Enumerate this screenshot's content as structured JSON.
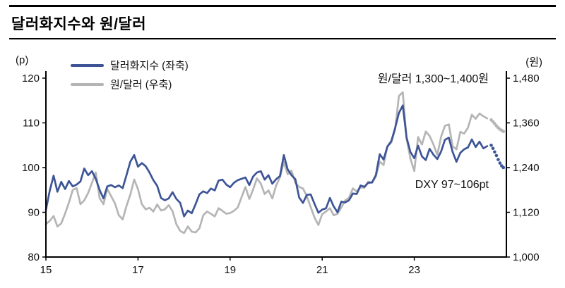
{
  "header": {
    "title": "달러화지수와 원/달러"
  },
  "chart_data": {
    "type": "line",
    "title": "달러화지수와 원/달러",
    "left_axis": {
      "label": "(p)",
      "min": 80,
      "max": 120,
      "ticks": [
        120,
        110,
        100,
        90,
        80
      ]
    },
    "right_axis": {
      "label": "(원)",
      "min": 1000,
      "max": 1480,
      "ticks": [
        "1,480",
        "1,360",
        "1,240",
        "1,120",
        "1,000"
      ]
    },
    "x_axis": {
      "min": 2015,
      "max": 2025,
      "tick_labels": [
        "15",
        "17",
        "19",
        "21",
        "23"
      ],
      "tick_years": [
        2015,
        2017,
        2019,
        2021,
        2023
      ]
    },
    "grid": false,
    "legend_position": "top-left",
    "legend": [
      {
        "label": "달러화지수 (좌축)",
        "color": "#3d5597"
      },
      {
        "label": "원/달러 (우축)",
        "color": "#b5b5b5"
      }
    ],
    "annotations": [
      {
        "text": "원/달러 1,300~1,400원"
      },
      {
        "text": "DXY 97~106pt"
      }
    ],
    "series": [
      {
        "name": "원/달러",
        "axis": "right",
        "color": "#b5b5b5",
        "x_start": 2015.0,
        "x_step": 0.08333,
        "values": [
          1088,
          1097,
          1110,
          1082,
          1090,
          1117,
          1146,
          1180,
          1185,
          1142,
          1152,
          1172,
          1199,
          1227,
          1158,
          1142,
          1183,
          1163,
          1144,
          1112,
          1101,
          1137,
          1167,
          1208,
          1182,
          1142,
          1128,
          1132,
          1122,
          1141,
          1125,
          1128,
          1139,
          1123,
          1088,
          1070,
          1064,
          1082,
          1068,
          1066,
          1077,
          1112,
          1122,
          1116,
          1109,
          1131,
          1124,
          1116,
          1118,
          1124,
          1133,
          1161,
          1188,
          1156,
          1181,
          1211,
          1197,
          1169,
          1179,
          1157,
          1192,
          1214,
          1255,
          1222,
          1232,
          1199,
          1188,
          1184,
          1163,
          1134,
          1106,
          1086,
          1115,
          1122,
          1131,
          1112,
          1116,
          1133,
          1152,
          1159,
          1184,
          1176,
          1187,
          1186,
          1202,
          1199,
          1216,
          1256,
          1247,
          1297,
          1307,
          1342,
          1432,
          1442,
          1318,
          1264,
          1231,
          1322,
          1302,
          1337,
          1325,
          1302,
          1274,
          1323,
          1352,
          1356,
          1297,
          1289,
          1336,
          1331,
          1347,
          1382,
          1371,
          1385,
          1378,
          1372
        ],
        "forecast": {
          "x_start": 2024.67,
          "x_step": 0.038,
          "values": [
            1368,
            1363,
            1358,
            1352,
            1347,
            1343,
            1340,
            1337
          ]
        }
      },
      {
        "name": "달러화지수",
        "axis": "left",
        "color": "#3d5597",
        "x_start": 2015.0,
        "x_step": 0.08333,
        "values": [
          90.5,
          94.8,
          98.2,
          94.6,
          96.8,
          95.2,
          97.0,
          95.8,
          96.2,
          96.9,
          99.8,
          98.3,
          99.2,
          97.5,
          95.0,
          93.1,
          95.8,
          96.1,
          95.6,
          96.0,
          95.4,
          98.3,
          101.3,
          102.8,
          100.2,
          101.0,
          100.3,
          98.9,
          97.2,
          95.9,
          93.2,
          92.7,
          93.1,
          94.5,
          93.0,
          92.1,
          89.1,
          90.4,
          89.8,
          91.8,
          94.0,
          94.7,
          94.3,
          95.3,
          94.9,
          97.1,
          97.3,
          96.2,
          95.6,
          96.6,
          97.2,
          97.5,
          97.8,
          96.1,
          98.0,
          98.9,
          99.2,
          97.3,
          98.3,
          96.4,
          97.4,
          98.1,
          102.8,
          99.6,
          98.3,
          97.4,
          93.3,
          92.1,
          93.9,
          94.0,
          91.9,
          89.9,
          90.6,
          90.9,
          93.2,
          91.3,
          90.0,
          92.4,
          92.2,
          92.7,
          94.2,
          94.1,
          96.0,
          95.7,
          96.6,
          96.7,
          98.3,
          103.0,
          101.8,
          104.7,
          105.9,
          108.8,
          112.2,
          113.9,
          106.7,
          103.5,
          102.1,
          104.9,
          102.5,
          101.7,
          104.2,
          102.9,
          101.9,
          103.6,
          106.2,
          106.7,
          103.5,
          101.3,
          103.3,
          104.1,
          104.5,
          106.3,
          104.6,
          105.8,
          104.3,
          104.8
        ],
        "forecast": {
          "x_start": 2024.67,
          "x_step": 0.038,
          "values": [
            105.0,
            104.3,
            103.5,
            102.7,
            101.8,
            101.0,
            100.4,
            100.0
          ]
        }
      }
    ]
  }
}
